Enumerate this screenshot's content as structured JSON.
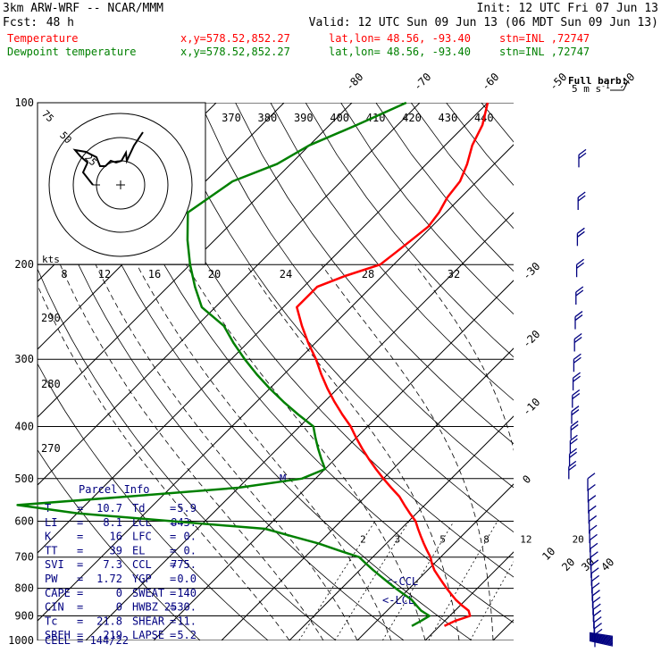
{
  "header": {
    "model": "3km ARW-WRF -- NCAR/MMM",
    "init": "Init: 12 UTC Fri 07 Jun 13",
    "fcst_label": "Fcst:",
    "fcst_value": "48 h",
    "valid": "Valid: 12 UTC Sun 09 Jun 13 (06 MDT Sun 09 Jun 13)",
    "temp_label": "Temperature",
    "dew_label": "Dewpoint temperature",
    "xy": "x,y=578.52,852.27",
    "latlon": "lat,lon= 48.56, -93.40",
    "stn": "stn=INL ,72747"
  },
  "colors": {
    "temperature": "#ff0000",
    "dewpoint": "#008000",
    "wind": "#000080",
    "grid": "#000000"
  },
  "barb_legend": {
    "line1": "Full barb:",
    "line2": "5 m s",
    "sup": "-1"
  },
  "pressure_labels": [
    "100",
    "200",
    "300",
    "400",
    "500",
    "600",
    "700",
    "800",
    "900",
    "1000"
  ],
  "isotherm_labels": [
    "-80",
    "-70",
    "-60",
    "-50",
    "-40",
    "-30",
    "-20",
    "-10",
    "0",
    "10",
    "20",
    "30",
    "40"
  ],
  "theta_labels": [
    "370",
    "380",
    "390",
    "400",
    "410",
    "420",
    "430",
    "440"
  ],
  "theta_left_labels": [
    "290",
    "280",
    "270"
  ],
  "mixing_ratio_labels": [
    "2",
    "3",
    "5",
    "8",
    "12",
    "20"
  ],
  "hodograph": {
    "ring_labels": [
      "75",
      "50",
      "25"
    ],
    "kts": "kts",
    "speed_labels": [
      "8",
      "12",
      "16",
      "20",
      "24",
      "28",
      "32"
    ]
  },
  "parcel": {
    "title": "Parcel Info",
    "rows": [
      {
        "k1": "T",
        "v1": "10.7",
        "k2": "Td",
        "v2": "5.9"
      },
      {
        "k1": "LI",
        "v1": "8.1",
        "k2": "LCL",
        "v2": "843."
      },
      {
        "k1": "K",
        "v1": "16",
        "k2": "LFC",
        "v2": "0."
      },
      {
        "k1": "TT",
        "v1": "39",
        "k2": "EL",
        "v2": "0."
      },
      {
        "k1": "SVI",
        "v1": "7.3",
        "k2": "CCL",
        "v2": "775."
      },
      {
        "k1": "PW",
        "v1": "1.72",
        "k2": "YGP",
        "v2": "0.0"
      },
      {
        "k1": "CAPE",
        "v1": "0",
        "k2": "SWEAT",
        "v2": "140"
      },
      {
        "k1": "CIN",
        "v1": "0",
        "k2": "HWBZ",
        "v2": "2530."
      },
      {
        "k1": "Tc",
        "v1": "21.8",
        "k2": "SHEAR",
        "v2": "11."
      },
      {
        "k1": "SREH",
        "v1": "219",
        "k2": "LAPSE",
        "v2": "5.2"
      }
    ],
    "cell": "CELL = 144/22"
  },
  "markers": {
    "ccl": "<-CCL",
    "lcl": "<-LCL",
    "m": "M"
  },
  "chart_data": {
    "type": "line",
    "title": "",
    "xlabel": "",
    "ylabel": "",
    "ylim": [
      1000,
      100
    ],
    "isotherm_range": [
      -80,
      40
    ],
    "series": [
      {
        "name": "Temperature",
        "pressure": [
          940,
          920,
          900,
          880,
          860,
          840,
          820,
          800,
          780,
          760,
          740,
          720,
          700,
          680,
          660,
          640,
          620,
          600,
          580,
          560,
          540,
          520,
          500,
          480,
          460,
          440,
          420,
          400,
          380,
          360,
          340,
          320,
          300,
          280,
          260,
          240,
          220,
          210,
          200,
          190,
          180,
          170,
          160,
          150,
          140,
          130,
          120,
          110,
          100
        ],
        "values": [
          10.7,
          11.5,
          13.0,
          12.0,
          10.2,
          8.5,
          7.0,
          5.5,
          4.0,
          2.5,
          1.0,
          -0.3,
          -1.5,
          -3.0,
          -4.5,
          -6.0,
          -7.5,
          -9.0,
          -11.0,
          -13.0,
          -15.0,
          -17.5,
          -20.0,
          -22.5,
          -25.0,
          -27.5,
          -30.0,
          -32.5,
          -35.5,
          -38.5,
          -41.5,
          -44.5,
          -47.5,
          -51.0,
          -54.5,
          -58.0,
          -58.0,
          -55.5,
          -52.0,
          -51.5,
          -51.0,
          -50.5,
          -51.0,
          -52.0,
          -52.5,
          -54.0,
          -56.0,
          -57.5,
          -60.0
        ]
      },
      {
        "name": "Dewpoint temperature",
        "pressure": [
          940,
          920,
          900,
          880,
          860,
          840,
          820,
          800,
          780,
          760,
          740,
          720,
          700,
          680,
          660,
          640,
          620,
          600,
          580,
          560,
          540,
          520,
          500,
          480,
          460,
          440,
          420,
          400,
          380,
          360,
          340,
          320,
          300,
          280,
          260,
          240,
          220,
          200,
          180,
          160,
          140,
          130,
          120,
          110,
          100
        ],
        "values": [
          5.9,
          6.5,
          7.0,
          5.0,
          3.5,
          2.0,
          0.0,
          -2.0,
          -4.0,
          -6.0,
          -8.0,
          -10.0,
          -12.0,
          -16.0,
          -20.0,
          -25.0,
          -30.0,
          -45.0,
          -60.0,
          -70.0,
          -55.0,
          -40.0,
          -32.0,
          -30.0,
          -32.0,
          -34.0,
          -36.0,
          -38.0,
          -42.0,
          -46.0,
          -50.0,
          -54.0,
          -58.0,
          -62.0,
          -66.0,
          -72.0,
          -76.0,
          -80.0,
          -84.0,
          -88.0,
          -86.0,
          -82.0,
          -80.0,
          -76.0,
          -72.0
        ]
      }
    ]
  }
}
